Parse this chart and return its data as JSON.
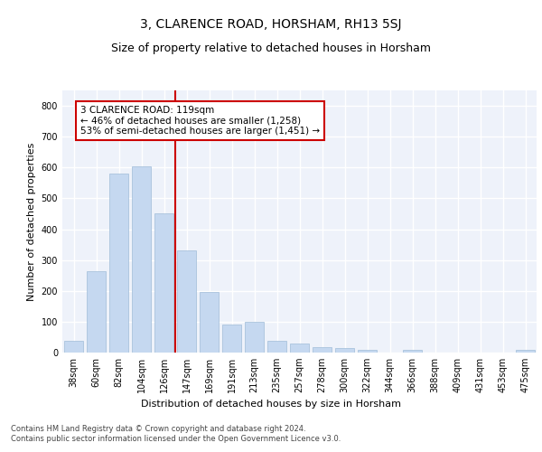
{
  "title1": "3, CLARENCE ROAD, HORSHAM, RH13 5SJ",
  "title2": "Size of property relative to detached houses in Horsham",
  "xlabel": "Distribution of detached houses by size in Horsham",
  "ylabel": "Number of detached properties",
  "categories": [
    "38sqm",
    "60sqm",
    "82sqm",
    "104sqm",
    "126sqm",
    "147sqm",
    "169sqm",
    "191sqm",
    "213sqm",
    "235sqm",
    "257sqm",
    "278sqm",
    "300sqm",
    "322sqm",
    "344sqm",
    "366sqm",
    "388sqm",
    "409sqm",
    "431sqm",
    "453sqm",
    "475sqm"
  ],
  "values": [
    38,
    265,
    580,
    605,
    450,
    330,
    195,
    90,
    100,
    38,
    30,
    18,
    15,
    10,
    0,
    8,
    0,
    0,
    0,
    0,
    8
  ],
  "bar_color": "#c5d8f0",
  "bar_edge_color": "#a0bcd8",
  "vline_x": 4.5,
  "vline_color": "#cc0000",
  "annotation_text": "3 CLARENCE ROAD: 119sqm\n← 46% of detached houses are smaller (1,258)\n53% of semi-detached houses are larger (1,451) →",
  "annotation_box_color": "#ffffff",
  "annotation_box_edge_color": "#cc0000",
  "ylim": [
    0,
    850
  ],
  "yticks": [
    0,
    100,
    200,
    300,
    400,
    500,
    600,
    700,
    800
  ],
  "footer": "Contains HM Land Registry data © Crown copyright and database right 2024.\nContains public sector information licensed under the Open Government Licence v3.0.",
  "bg_color": "#eef2fa",
  "grid_color": "#ffffff",
  "title1_fontsize": 10,
  "title2_fontsize": 9,
  "axis_label_fontsize": 8,
  "tick_fontsize": 7,
  "annotation_fontsize": 7.5,
  "footer_fontsize": 6
}
